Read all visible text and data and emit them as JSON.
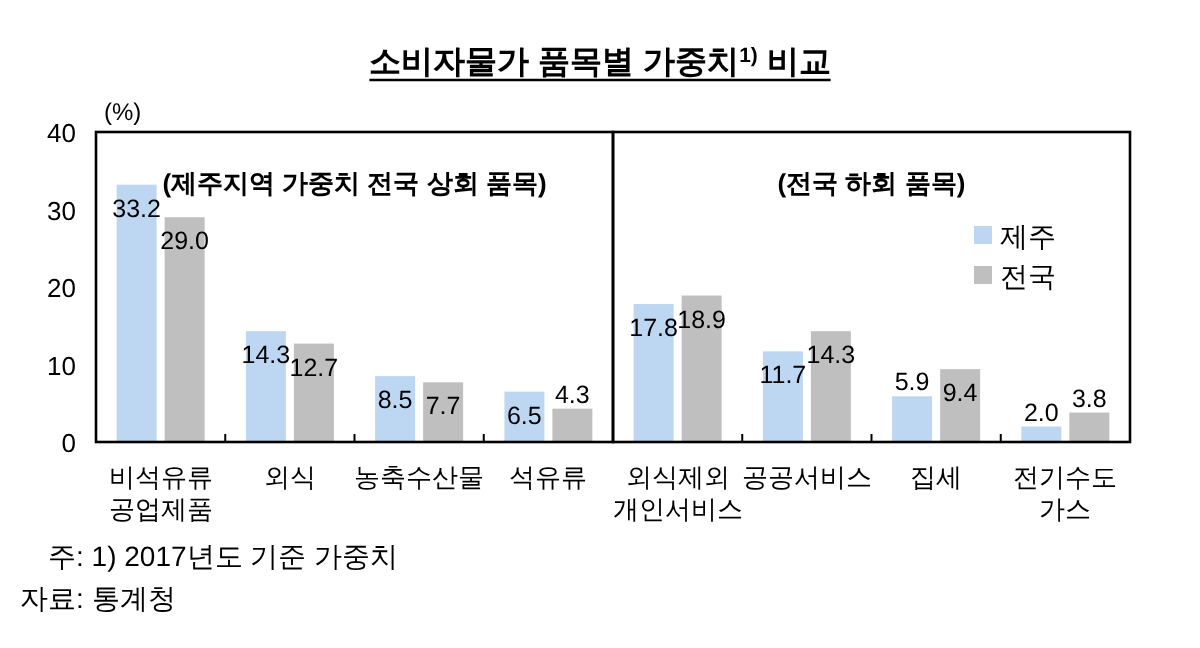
{
  "chart_data": [
    {
      "type": "bar",
      "title": "소비자물가 품목별 가중치$^{1)}$ 비교",
      "subtitle": "(제주지역 가중치 전국 상회 품목)",
      "ylabel": "(%)",
      "categories": [
        "비석유류 공업제품",
        "외식",
        "농축수산물",
        "석유류"
      ],
      "series": [
        {
          "color": "#bdd7f3",
          "values": [
            33.2,
            14.3,
            8.5,
            6.5
          ],
          "value_labels": [
            "33.2",
            "14.3",
            "8.5",
            "6.5"
          ]
        },
        {
          "color": "#bfbfbf",
          "values": [
            29.0,
            12.7,
            7.7,
            4.3
          ],
          "value_labels": [
            "29.0",
            "12.7",
            "7.7",
            "4.3"
          ]
        }
      ],
      "ylim": [
        0,
        40
      ],
      "yticks": [
        0,
        10,
        20,
        30,
        40
      ],
      "annotations": [
        "주: 1) 2017년도 기준 가중치",
        "자료: 통계청"
      ]
    },
    {
      "type": "bar",
      "subtitle": "(전국 하회 품목)",
      "categories": [
        "외식제외 개인서비스",
        "공공서비스",
        "집세",
        "전기수도 가스"
      ],
      "series": [
        {
          "name": "제주",
          "color": "#bdd7f3",
          "values": [
            17.8,
            11.7,
            5.9,
            2.0
          ],
          "value_labels": [
            "17.8",
            "11.7",
            "5.9",
            "2.0"
          ]
        },
        {
          "name": "전국",
          "color": "#bfbfbf",
          "values": [
            18.9,
            14.3,
            9.4,
            3.8
          ],
          "value_labels": [
            "18.9",
            "14.3",
            "9.4",
            "3.8"
          ]
        }
      ],
      "ylim": [
        0,
        40
      ],
      "yticks": [
        0,
        10,
        20,
        30,
        40
      ],
      "tick_labels": "x",
      "legend": "right"
    }
  ]
}
